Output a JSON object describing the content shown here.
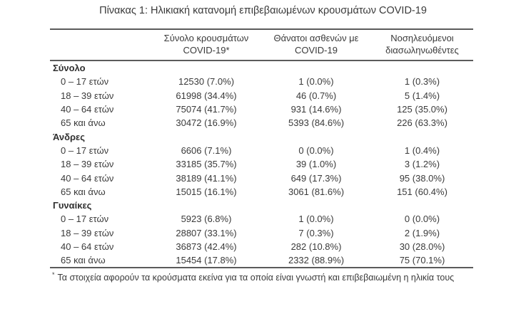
{
  "page": {
    "title": "Πίνακας 1: Ηλικιακή κατανομή επιβεβαιωμένων κρουσμάτων COVID-19"
  },
  "table": {
    "columns": [
      {
        "line1": "Σύνολο κρουσμάτων",
        "line2": "COVID-19*"
      },
      {
        "line1": "Θάνατοι ασθενών με",
        "line2": "COVID-19"
      },
      {
        "line1": "Νοσηλευόμενοι",
        "line2": "διασωληνωθέντες"
      }
    ],
    "sections": [
      {
        "name": "Σύνολο",
        "rows": [
          {
            "age": "0 – 17 ετών",
            "cases": "12530 (7.0%)",
            "deaths": "1 (0.0%)",
            "intubated": "1 (0.3%)"
          },
          {
            "age": "18 – 39 ετών",
            "cases": "61998 (34.4%)",
            "deaths": "46 (0.7%)",
            "intubated": "5 (1.4%)"
          },
          {
            "age": "40 – 64 ετών",
            "cases": "75074 (41.7%)",
            "deaths": "931 (14.6%)",
            "intubated": "125 (35.0%)"
          },
          {
            "age": "65 και άνω",
            "cases": "30472 (16.9%)",
            "deaths": "5393 (84.6%)",
            "intubated": "226 (63.3%)"
          }
        ]
      },
      {
        "name": "Άνδρες",
        "rows": [
          {
            "age": "0 – 17 ετών",
            "cases": "6606 (7.1%)",
            "deaths": "0 (0.0%)",
            "intubated": "1 (0.4%)"
          },
          {
            "age": "18 – 39 ετών",
            "cases": "33185 (35.7%)",
            "deaths": "39 (1.0%)",
            "intubated": "3 (1.2%)"
          },
          {
            "age": "40 – 64 ετών",
            "cases": "38189 (41.1%)",
            "deaths": "649 (17.3%)",
            "intubated": "95 (38.0%)"
          },
          {
            "age": "65 και άνω",
            "cases": "15015 (16.1%)",
            "deaths": "3061 (81.6%)",
            "intubated": "151 (60.4%)"
          }
        ]
      },
      {
        "name": "Γυναίκες",
        "rows": [
          {
            "age": "0 – 17 ετών",
            "cases": "5923 (6.8%)",
            "deaths": "1 (0.0%)",
            "intubated": "0 (0.0%)"
          },
          {
            "age": "18 – 39 ετών",
            "cases": "28807 (33.1%)",
            "deaths": "7 (0.3%)",
            "intubated": "2 (1.9%)"
          },
          {
            "age": "40 – 64 ετών",
            "cases": "36873 (42.4%)",
            "deaths": "282 (10.8%)",
            "intubated": "30 (28.0%)"
          },
          {
            "age": "65 και άνω",
            "cases": "15454 (17.8%)",
            "deaths": "2332 (88.9%)",
            "intubated": "75 (70.1%)"
          }
        ]
      }
    ]
  },
  "footnote": {
    "marker": "*",
    "text": "Τα στοιχεία αφορούν τα κρούσματα εκείνα για τα οποία είναι γνωστή και επιβεβαιωμένη η ηλικία τους"
  },
  "colors": {
    "text": "#3a3a3a",
    "section_text": "#2f2f2f",
    "rule": "#5b5b5b"
  }
}
